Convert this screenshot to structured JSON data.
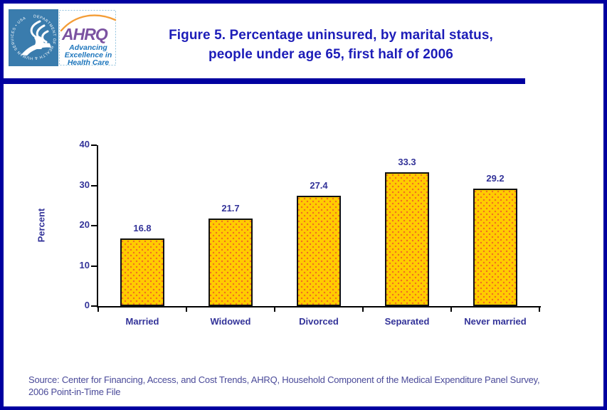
{
  "page": {
    "border_color": "#0000A0",
    "accent_navy": "#1C1CB8"
  },
  "logo": {
    "hhs_circle_text": "DEPARTMENT OF HEALTH & HUMAN SERVICES • USA",
    "ahrq_acronym": "AHRQ",
    "tagline_lines": [
      "Advancing",
      "Excellence in",
      "Health Care"
    ],
    "ahrq_purple": "#7B52A1",
    "tagline_blue": "#1C75BC",
    "hhs_blue": "#3A7CAD",
    "arc_orange": "#F49D37"
  },
  "title": {
    "line1": "Figure 5. Percentage uninsured, by marital status,",
    "line2": "people under age 65, first half of 2006"
  },
  "chart_data": {
    "type": "bar",
    "categories": [
      "Married",
      "Widowed",
      "Divorced",
      "Separated",
      "Never married"
    ],
    "values": [
      16.8,
      21.7,
      27.4,
      33.3,
      29.2
    ],
    "title": "",
    "xlabel": "",
    "ylabel": "Percent",
    "ylim": [
      0,
      40
    ],
    "yticks": [
      0,
      10,
      20,
      30,
      40
    ],
    "grid": false,
    "legend": false,
    "bar_color": "#FFCC00",
    "bar_dot_color": "#F26C22",
    "bar_border_color": "#111111",
    "label_color": "#333399"
  },
  "source": {
    "line1": "Source: Center for Financing, Access, and Cost Trends, AHRQ, Household Component of the Medical Expenditure Panel Survey,",
    "line2": "2006 Point-in-Time File"
  }
}
